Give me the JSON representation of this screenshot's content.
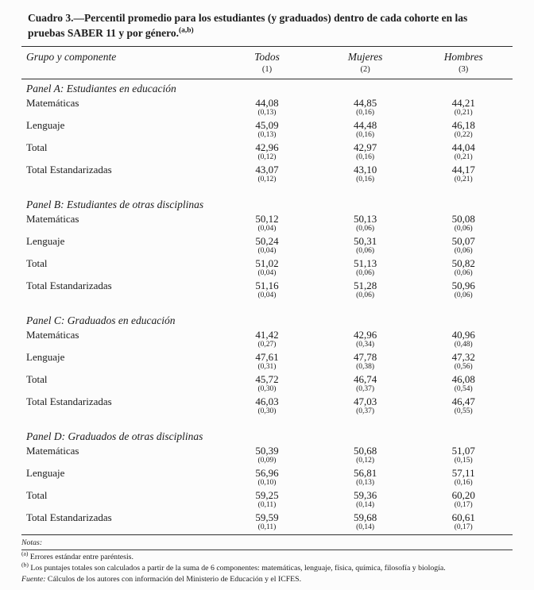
{
  "title": {
    "text": "Cuadro 3.—Percentil promedio para los estudiantes (y graduados) dentro de cada cohorte en las pruebas SABER 11 y por género.",
    "superscript": "(a,b)"
  },
  "table": {
    "row_header": "Grupo y componente",
    "columns": [
      {
        "label": "Todos",
        "number": "(1)"
      },
      {
        "label": "Mujeres",
        "number": "(2)"
      },
      {
        "label": "Hombres",
        "number": "(3)"
      }
    ],
    "panels": [
      {
        "title": "Panel A: Estudiantes en educación",
        "rows": [
          {
            "label": "Matemáticas",
            "values": [
              "44,08",
              "44,85",
              "44,21"
            ],
            "se": [
              "(0,13)",
              "(0,16)",
              "(0,21)"
            ]
          },
          {
            "label": "Lenguaje",
            "values": [
              "45,09",
              "44,48",
              "46,18"
            ],
            "se": [
              "(0,13)",
              "(0,16)",
              "(0,22)"
            ]
          },
          {
            "label": "Total",
            "values": [
              "42,96",
              "42,97",
              "44,04"
            ],
            "se": [
              "(0,12)",
              "(0,16)",
              "(0,21)"
            ]
          },
          {
            "label": "Total Estandarizadas",
            "values": [
              "43,07",
              "43,10",
              "44,17"
            ],
            "se": [
              "(0,12)",
              "(0,16)",
              "(0,21)"
            ]
          }
        ]
      },
      {
        "title": "Panel B: Estudiantes de otras disciplinas",
        "rows": [
          {
            "label": "Matemáticas",
            "values": [
              "50,12",
              "50,13",
              "50,08"
            ],
            "se": [
              "(0,04)",
              "(0,06)",
              "(0,06)"
            ]
          },
          {
            "label": "Lenguaje",
            "values": [
              "50,24",
              "50,31",
              "50,07"
            ],
            "se": [
              "(0,04)",
              "(0,06)",
              "(0,06)"
            ]
          },
          {
            "label": "Total",
            "values": [
              "51,02",
              "51,13",
              "50,82"
            ],
            "se": [
              "(0,04)",
              "(0,06)",
              "(0,06)"
            ]
          },
          {
            "label": "Total Estandarizadas",
            "values": [
              "51,16",
              "51,28",
              "50,96"
            ],
            "se": [
              "(0,04)",
              "(0,06)",
              "(0,06)"
            ]
          }
        ]
      },
      {
        "title": "Panel C: Graduados en educación",
        "rows": [
          {
            "label": "Matemáticas",
            "values": [
              "41,42",
              "42,96",
              "40,96"
            ],
            "se": [
              "(0,27)",
              "(0,34)",
              "(0,48)"
            ]
          },
          {
            "label": "Lenguaje",
            "values": [
              "47,61",
              "47,78",
              "47,32"
            ],
            "se": [
              "(0,31)",
              "(0,38)",
              "(0,56)"
            ]
          },
          {
            "label": "Total",
            "values": [
              "45,72",
              "46,74",
              "46,08"
            ],
            "se": [
              "(0,30)",
              "(0,37)",
              "(0,54)"
            ]
          },
          {
            "label": "Total Estandarizadas",
            "values": [
              "46,03",
              "47,03",
              "46,47"
            ],
            "se": [
              "(0,30)",
              "(0,37)",
              "(0,55)"
            ]
          }
        ]
      },
      {
        "title": "Panel D: Graduados de otras disciplinas",
        "rows": [
          {
            "label": "Matemáticas",
            "values": [
              "50,39",
              "50,68",
              "51,07"
            ],
            "se": [
              "(0,09)",
              "(0,12)",
              "(0,15)"
            ]
          },
          {
            "label": "Lenguaje",
            "values": [
              "56,96",
              "56,81",
              "57,11"
            ],
            "se": [
              "(0,10)",
              "(0,13)",
              "(0,16)"
            ]
          },
          {
            "label": "Total",
            "values": [
              "59,25",
              "59,36",
              "60,20"
            ],
            "se": [
              "(0,11)",
              "(0,14)",
              "(0,17)"
            ]
          },
          {
            "label": "Total Estandarizadas",
            "values": [
              "59,59",
              "59,68",
              "60,61"
            ],
            "se": [
              "(0,11)",
              "(0,14)",
              "(0,17)"
            ]
          }
        ]
      }
    ]
  },
  "notes": {
    "header": "Notas:",
    "items": [
      {
        "marker": "(a)",
        "text": "Errores estándar entre paréntesis."
      },
      {
        "marker": "(b)",
        "text": "Los puntajes totales son calculados a partir de la suma de 6 componentes: matemáticas, lenguaje, física, química, filosofía y biología."
      }
    ],
    "source_label": "Fuente:",
    "source_text": "Cálculos de los autores con información del Ministerio de Educación y el ICFES."
  }
}
